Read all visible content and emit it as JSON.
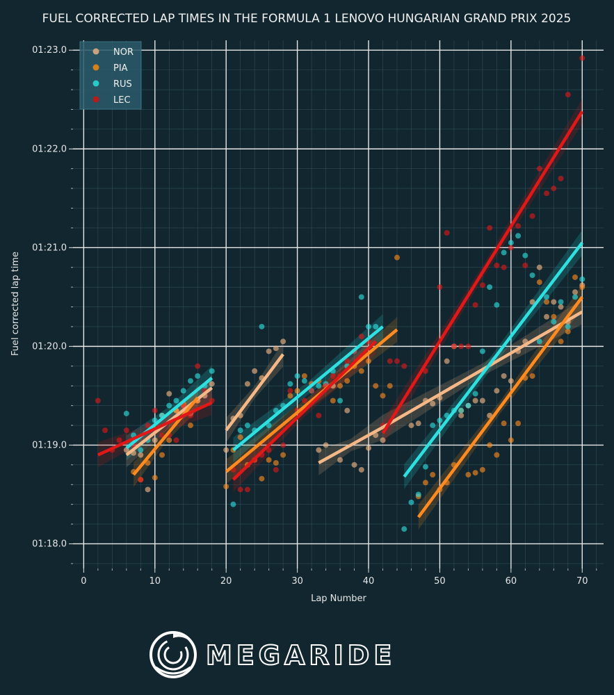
{
  "chart_data": {
    "type": "scatter",
    "title": "FUEL CORRECTED LAP TIMES IN THE FORMULA 1 LENOVO HUNGARIAN GRAND PRIX 2025",
    "xlabel": "Lap Number",
    "ylabel": "Fuel corrected lap time",
    "xlim": [
      -1.5,
      73
    ],
    "ylim": [
      77.75,
      83.1
    ],
    "x_ticks": [
      0,
      10,
      20,
      30,
      40,
      50,
      60,
      70
    ],
    "x_tick_labels": [
      "0",
      "10",
      "20",
      "30",
      "40",
      "50",
      "60",
      "70"
    ],
    "y_ticks": [
      78,
      79,
      80,
      81,
      82,
      83
    ],
    "y_tick_labels": [
      "01:18.0",
      "01:19.0",
      "01:20.0",
      "01:21.0",
      "01:22.0",
      "01:23.0"
    ],
    "grid": true,
    "legend_position": "top-left",
    "series": [
      {
        "name": "NOR",
        "color": "#f5b886",
        "points": [
          [
            6,
            78.95
          ],
          [
            7,
            78.92
          ],
          [
            8,
            78.9
          ],
          [
            9,
            78.55
          ],
          [
            10,
            79.05
          ],
          [
            11,
            79.3
          ],
          [
            12,
            79.52
          ],
          [
            13,
            79.35
          ],
          [
            14,
            79.4
          ],
          [
            15,
            79.32
          ],
          [
            16,
            79.45
          ],
          [
            17,
            79.5
          ],
          [
            18,
            79.62
          ],
          [
            20,
            78.95
          ],
          [
            21,
            79.27
          ],
          [
            22,
            79.3
          ],
          [
            23,
            79.62
          ],
          [
            24,
            79.75
          ],
          [
            25,
            79.68
          ],
          [
            26,
            79.95
          ],
          [
            27,
            79.98
          ],
          [
            28,
            80.05
          ],
          [
            33,
            78.95
          ],
          [
            34,
            79.0
          ],
          [
            35,
            79.6
          ],
          [
            36,
            78.85
          ],
          [
            37,
            79.35
          ],
          [
            38,
            78.8
          ],
          [
            39,
            78.75
          ],
          [
            40,
            78.97
          ],
          [
            41,
            79.1
          ],
          [
            42,
            79.05
          ],
          [
            46,
            79.2
          ],
          [
            47,
            79.22
          ],
          [
            48,
            79.45
          ],
          [
            49,
            79.42
          ],
          [
            50,
            79.48
          ],
          [
            51,
            79.85
          ],
          [
            52,
            80.0
          ],
          [
            53,
            79.3
          ],
          [
            54,
            79.4
          ],
          [
            55,
            79.45
          ],
          [
            56,
            79.45
          ],
          [
            57,
            79.3
          ],
          [
            58,
            79.55
          ],
          [
            59,
            79.7
          ],
          [
            60,
            79.65
          ],
          [
            61,
            79.95
          ],
          [
            62,
            80.05
          ],
          [
            63,
            80.45
          ],
          [
            64,
            80.8
          ],
          [
            65,
            80.3
          ],
          [
            66,
            80.45
          ],
          [
            67,
            80.4
          ],
          [
            68,
            80.25
          ],
          [
            69,
            80.55
          ],
          [
            70,
            80.62
          ]
        ],
        "fit": {
          "x": [
            6,
            70
          ],
          "y": [
            78.9,
            80.35
          ]
        }
      },
      {
        "name": "PIA",
        "color": "#ff8a1f",
        "points": [
          [
            7,
            78.73
          ],
          [
            8,
            78.65
          ],
          [
            9,
            78.82
          ],
          [
            10,
            78.67
          ],
          [
            11,
            78.9
          ],
          [
            12,
            79.05
          ],
          [
            13,
            79.35
          ],
          [
            14,
            79.42
          ],
          [
            15,
            79.2
          ],
          [
            16,
            79.45
          ],
          [
            20,
            78.58
          ],
          [
            21,
            78.95
          ],
          [
            22,
            79.08
          ],
          [
            23,
            78.8
          ],
          [
            24,
            78.85
          ],
          [
            25,
            78.66
          ],
          [
            26,
            78.85
          ],
          [
            27,
            78.82
          ],
          [
            28,
            78.9
          ],
          [
            29,
            79.5
          ],
          [
            30,
            79.55
          ],
          [
            31,
            79.7
          ],
          [
            32,
            79.62
          ],
          [
            33,
            79.65
          ],
          [
            34,
            79.6
          ],
          [
            35,
            79.45
          ],
          [
            36,
            79.6
          ],
          [
            37,
            79.65
          ],
          [
            38,
            79.8
          ],
          [
            39,
            79.75
          ],
          [
            40,
            79.85
          ],
          [
            41,
            79.6
          ],
          [
            42,
            79.5
          ],
          [
            43,
            79.6
          ],
          [
            44,
            80.9
          ],
          [
            47,
            78.48
          ],
          [
            48,
            78.62
          ],
          [
            49,
            78.7
          ],
          [
            50,
            78.55
          ],
          [
            51,
            78.62
          ],
          [
            52,
            78.8
          ],
          [
            53,
            79.35
          ],
          [
            54,
            78.7
          ],
          [
            55,
            78.72
          ],
          [
            56,
            78.75
          ],
          [
            57,
            79.0
          ],
          [
            58,
            78.9
          ],
          [
            59,
            79.22
          ],
          [
            60,
            79.05
          ],
          [
            61,
            79.22
          ],
          [
            62,
            79.68
          ],
          [
            63,
            79.7
          ],
          [
            64,
            80.65
          ],
          [
            65,
            80.45
          ],
          [
            66,
            80.3
          ],
          [
            67,
            80.05
          ],
          [
            68,
            80.15
          ],
          [
            69,
            80.7
          ],
          [
            70,
            80.6
          ]
        ],
        "fit": {
          "x": [
            7,
            70
          ],
          "y": [
            78.7,
            80.5
          ]
        }
      },
      {
        "name": "RUS",
        "color": "#2fe0e0",
        "points": [
          [
            6,
            79.32
          ],
          [
            7,
            79.1
          ],
          [
            8,
            78.95
          ],
          [
            9,
            79.05
          ],
          [
            10,
            79.25
          ],
          [
            11,
            79.3
          ],
          [
            12,
            79.4
          ],
          [
            13,
            79.45
          ],
          [
            14,
            79.55
          ],
          [
            15,
            79.65
          ],
          [
            16,
            79.7
          ],
          [
            17,
            79.6
          ],
          [
            18,
            79.75
          ],
          [
            21,
            78.4
          ],
          [
            22,
            79.15
          ],
          [
            23,
            79.2
          ],
          [
            24,
            79.15
          ],
          [
            25,
            80.2
          ],
          [
            26,
            79.2
          ],
          [
            27,
            79.35
          ],
          [
            28,
            79.4
          ],
          [
            29,
            79.62
          ],
          [
            30,
            79.7
          ],
          [
            31,
            79.65
          ],
          [
            32,
            79.55
          ],
          [
            33,
            79.6
          ],
          [
            34,
            79.62
          ],
          [
            35,
            79.75
          ],
          [
            36,
            79.45
          ],
          [
            37,
            79.8
          ],
          [
            38,
            79.95
          ],
          [
            39,
            80.5
          ],
          [
            40,
            80.2
          ],
          [
            41,
            80.2
          ],
          [
            45,
            78.15
          ],
          [
            46,
            78.42
          ],
          [
            47,
            78.5
          ],
          [
            48,
            78.78
          ],
          [
            49,
            79.2
          ],
          [
            50,
            79.25
          ],
          [
            51,
            79.3
          ],
          [
            52,
            79.35
          ],
          [
            53,
            79.35
          ],
          [
            54,
            79.4
          ],
          [
            55,
            79.52
          ],
          [
            56,
            79.95
          ],
          [
            57,
            80.6
          ],
          [
            58,
            80.42
          ],
          [
            59,
            80.95
          ],
          [
            60,
            81.05
          ],
          [
            61,
            81.12
          ],
          [
            62,
            80.92
          ],
          [
            63,
            80.72
          ],
          [
            64,
            80.05
          ],
          [
            65,
            80.5
          ],
          [
            66,
            80.25
          ],
          [
            67,
            80.45
          ],
          [
            68,
            80.2
          ],
          [
            69,
            80.5
          ],
          [
            70,
            80.68
          ]
        ],
        "fit": {
          "x": [
            6,
            70
          ],
          "y": [
            78.95,
            81.05
          ]
        }
      },
      {
        "name": "LEC",
        "color": "#e01818",
        "points": [
          [
            2,
            79.45
          ],
          [
            3,
            79.15
          ],
          [
            4,
            78.95
          ],
          [
            5,
            79.05
          ],
          [
            6,
            79.15
          ],
          [
            7,
            79.0
          ],
          [
            8,
            78.65
          ],
          [
            9,
            79.2
          ],
          [
            10,
            79.35
          ],
          [
            11,
            79.1
          ],
          [
            12,
            79.1
          ],
          [
            13,
            79.05
          ],
          [
            14,
            79.4
          ],
          [
            15,
            79.3
          ],
          [
            16,
            79.8
          ],
          [
            17,
            79.55
          ],
          [
            18,
            79.45
          ],
          [
            21,
            78.75
          ],
          [
            22,
            78.55
          ],
          [
            23,
            78.55
          ],
          [
            24,
            78.85
          ],
          [
            25,
            78.9
          ],
          [
            26,
            78.95
          ],
          [
            27,
            78.75
          ],
          [
            28,
            79.0
          ],
          [
            29,
            79.55
          ],
          [
            30,
            79.35
          ],
          [
            31,
            79.45
          ],
          [
            32,
            79.55
          ],
          [
            33,
            79.3
          ],
          [
            34,
            79.6
          ],
          [
            35,
            79.7
          ],
          [
            36,
            79.7
          ],
          [
            37,
            79.85
          ],
          [
            38,
            79.95
          ],
          [
            39,
            80.1
          ],
          [
            40,
            80.05
          ],
          [
            42,
            79.2
          ],
          [
            43,
            79.85
          ],
          [
            44,
            79.85
          ],
          [
            45,
            79.8
          ],
          [
            48,
            79.75
          ],
          [
            50,
            80.6
          ],
          [
            51,
            81.15
          ],
          [
            52,
            80.0
          ],
          [
            53,
            80.0
          ],
          [
            54,
            80.0
          ],
          [
            55,
            80.42
          ],
          [
            56,
            80.62
          ],
          [
            57,
            81.2
          ],
          [
            58,
            80.82
          ],
          [
            59,
            80.8
          ],
          [
            60,
            81.0
          ],
          [
            61,
            81.22
          ],
          [
            62,
            80.82
          ],
          [
            63,
            81.32
          ],
          [
            64,
            81.8
          ],
          [
            65,
            81.55
          ],
          [
            66,
            81.6
          ],
          [
            67,
            81.7
          ],
          [
            68,
            82.55
          ],
          [
            70,
            82.92
          ]
        ],
        "fit": {
          "x": [
            2,
            70
          ],
          "y": [
            78.9,
            82.4
          ]
        }
      }
    ],
    "stint_fits": [
      {
        "series": "NOR",
        "x": [
          6,
          18
        ],
        "y": [
          78.9,
          79.58
        ]
      },
      {
        "series": "NOR",
        "x": [
          20,
          28
        ],
        "y": [
          79.15,
          79.92
        ]
      },
      {
        "series": "NOR",
        "x": [
          33,
          42
        ],
        "y": [
          78.82,
          79.18
        ]
      },
      {
        "series": "NOR",
        "x": [
          42,
          70
        ],
        "y": [
          79.18,
          80.35
        ]
      },
      {
        "series": "PIA",
        "x": [
          7,
          16
        ],
        "y": [
          78.7,
          79.48
        ]
      },
      {
        "series": "PIA",
        "x": [
          20,
          44
        ],
        "y": [
          78.73,
          80.17
        ]
      },
      {
        "series": "PIA",
        "x": [
          47,
          70
        ],
        "y": [
          78.27,
          80.5
        ]
      },
      {
        "series": "RUS",
        "x": [
          6,
          18
        ],
        "y": [
          78.97,
          79.68
        ]
      },
      {
        "series": "RUS",
        "x": [
          21,
          42
        ],
        "y": [
          78.95,
          80.2
        ]
      },
      {
        "series": "RUS",
        "x": [
          45,
          70
        ],
        "y": [
          78.68,
          81.05
        ]
      },
      {
        "series": "LEC",
        "x": [
          2,
          18
        ],
        "y": [
          78.9,
          79.43
        ]
      },
      {
        "series": "LEC",
        "x": [
          21,
          41
        ],
        "y": [
          78.65,
          80.05
        ]
      },
      {
        "series": "LEC",
        "x": [
          42,
          70
        ],
        "y": [
          79.12,
          82.38
        ]
      }
    ]
  },
  "legend": {
    "items": [
      {
        "label": "NOR",
        "color": "#c9a17f"
      },
      {
        "label": "PIA",
        "color": "#d4801c"
      },
      {
        "label": "RUS",
        "color": "#2ac8c8"
      },
      {
        "label": "LEC",
        "color": "#b51c1c"
      }
    ]
  },
  "logo": {
    "text": "MEGARIDE"
  }
}
